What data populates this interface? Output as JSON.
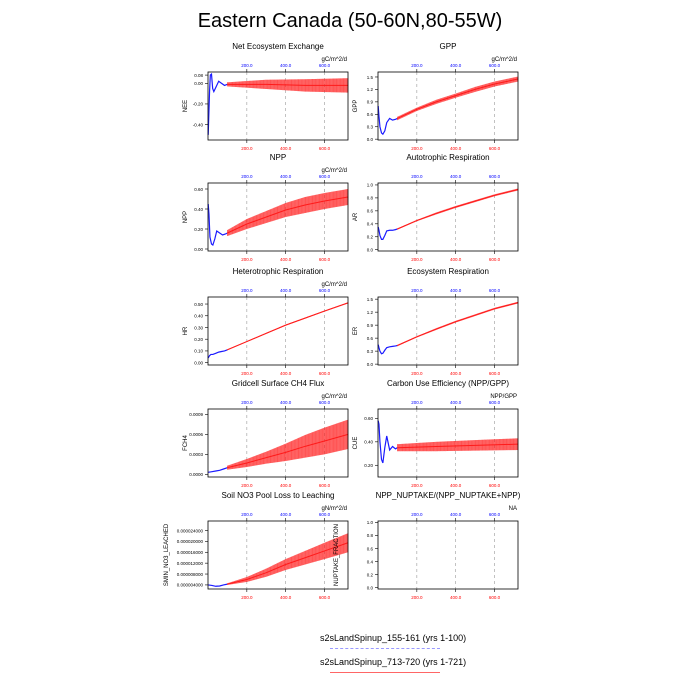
{
  "title": "Eastern Canada (50-60N,80-55W)",
  "colors": {
    "run1": "#1a1aff",
    "run2": "#ff1a1a",
    "bottom_axis": "#ff0000",
    "top_axis": "#0000ff"
  },
  "legend": {
    "entries": [
      {
        "label": "s2sLandSpinup_155-161 (yrs 1-100)",
        "color": "#9999ff",
        "dash": "dashed"
      },
      {
        "label": "s2sLandSpinup_713-720 (yrs 1-721)",
        "color": "#ff6666",
        "dash": "solid"
      }
    ]
  },
  "chart_data": [
    {
      "type": "line",
      "title": "Net Ecosystem Exchange",
      "units": "gC/m^2/d",
      "ylabel": "NEE",
      "xlim": [
        0,
        721
      ],
      "ylim": [
        -0.55,
        0.11
      ],
      "yticks": [
        0.08,
        0.0,
        -0.2,
        -0.4
      ],
      "ytick_labels": [
        "0.08",
        "0.00",
        "-0.20",
        "-0.40"
      ],
      "xticks_bottom": [
        200,
        400,
        600
      ],
      "xticks_top": [
        200,
        400,
        600
      ],
      "grid_x": true,
      "series": [
        {
          "x": [
            1,
            8,
            12,
            18,
            24,
            30,
            40,
            55,
            70,
            85,
            100
          ],
          "y": [
            -0.5,
            -0.08,
            0.08,
            0.09,
            -0.05,
            -0.08,
            -0.04,
            0.02,
            0.0,
            -0.02,
            -0.01
          ]
        },
        {
          "x": [
            100,
            300,
            500,
            721
          ],
          "y": [
            -0.01,
            -0.01,
            -0.02,
            -0.02
          ],
          "band": [
            0.02,
            0.045,
            0.06,
            0.07
          ]
        }
      ]
    },
    {
      "type": "line",
      "title": "GPP",
      "units": "gC/m^2/d",
      "ylabel": "GPP",
      "xlim": [
        0,
        721
      ],
      "ylim": [
        -0.02,
        1.62
      ],
      "yticks": [
        0.0,
        0.3,
        0.6,
        0.9,
        1.2,
        1.5
      ],
      "ytick_labels": [
        "0.0",
        "0.3",
        "0.6",
        "0.9",
        "1.2",
        "1.5"
      ],
      "xticks_bottom": [
        200,
        400,
        600
      ],
      "xticks_top": [
        200,
        400,
        600
      ],
      "grid_x": true,
      "series": [
        {
          "x": [
            1,
            5,
            10,
            18,
            25,
            35,
            45,
            60,
            75,
            90,
            100
          ],
          "y": [
            0.8,
            0.55,
            0.3,
            0.15,
            0.12,
            0.2,
            0.4,
            0.5,
            0.46,
            0.48,
            0.5
          ]
        },
        {
          "x": [
            100,
            200,
            300,
            400,
            500,
            600,
            721
          ],
          "y": [
            0.5,
            0.72,
            0.9,
            1.05,
            1.2,
            1.33,
            1.45
          ],
          "band": [
            0.04,
            0.04,
            0.05,
            0.05,
            0.06,
            0.06,
            0.06
          ]
        }
      ]
    },
    {
      "type": "line",
      "title": "NPP",
      "units": "gC/m^2/d",
      "ylabel": "NPP",
      "xlim": [
        0,
        721
      ],
      "ylim": [
        -0.02,
        0.66
      ],
      "yticks": [
        0.0,
        0.2,
        0.4,
        0.6
      ],
      "ytick_labels": [
        "0.00",
        "0.20",
        "0.40",
        "0.60"
      ],
      "xticks_bottom": [
        200,
        400,
        600
      ],
      "xticks_top": [
        200,
        400,
        600
      ],
      "grid_x": true,
      "series": [
        {
          "x": [
            1,
            5,
            10,
            18,
            25,
            35,
            45,
            60,
            75,
            90,
            100
          ],
          "y": [
            0.45,
            0.35,
            0.12,
            0.05,
            0.04,
            0.1,
            0.18,
            0.16,
            0.14,
            0.15,
            0.16
          ]
        },
        {
          "x": [
            100,
            200,
            300,
            400,
            500,
            600,
            721
          ],
          "y": [
            0.16,
            0.25,
            0.32,
            0.39,
            0.44,
            0.48,
            0.52
          ],
          "band": [
            0.03,
            0.05,
            0.06,
            0.07,
            0.08,
            0.08,
            0.08
          ]
        }
      ]
    },
    {
      "type": "line",
      "title": "Autotrophic Respiration",
      "units": "",
      "ylabel": "AR",
      "xlim": [
        0,
        721
      ],
      "ylim": [
        -0.02,
        1.03
      ],
      "yticks": [
        0.0,
        0.2,
        0.4,
        0.6,
        0.8,
        1.0
      ],
      "ytick_labels": [
        "0.0",
        "0.2",
        "0.4",
        "0.6",
        "0.8",
        "1.0"
      ],
      "xticks_bottom": [
        200,
        400,
        600
      ],
      "xticks_top": [
        200,
        400,
        600
      ],
      "grid_x": true,
      "series": [
        {
          "x": [
            1,
            5,
            10,
            18,
            25,
            35,
            45,
            60,
            75,
            90,
            100
          ],
          "y": [
            0.35,
            0.3,
            0.22,
            0.16,
            0.16,
            0.22,
            0.29,
            0.3,
            0.3,
            0.31,
            0.32
          ]
        },
        {
          "x": [
            100,
            200,
            300,
            400,
            500,
            600,
            721
          ],
          "y": [
            0.32,
            0.45,
            0.56,
            0.66,
            0.75,
            0.84,
            0.93
          ],
          "band": [
            0.01,
            0.01,
            0.015,
            0.015,
            0.015,
            0.015,
            0.015
          ]
        }
      ]
    },
    {
      "type": "line",
      "title": "Heterotrophic Respiration",
      "units": "gC/m^2/d",
      "ylabel": "HR",
      "xlim": [
        0,
        721
      ],
      "ylim": [
        -0.02,
        0.56
      ],
      "yticks": [
        0.0,
        0.1,
        0.2,
        0.3,
        0.4,
        0.5
      ],
      "ytick_labels": [
        "0.00",
        "0.10",
        "0.20",
        "0.30",
        "0.40",
        "0.50"
      ],
      "xticks_bottom": [
        200,
        400,
        600
      ],
      "xticks_top": [
        200,
        400,
        600
      ],
      "grid_x": true,
      "series": [
        {
          "x": [
            1,
            8,
            15,
            25,
            40,
            55,
            70,
            85,
            100
          ],
          "y": [
            0.04,
            0.06,
            0.07,
            0.07,
            0.08,
            0.09,
            0.095,
            0.1,
            0.11
          ]
        },
        {
          "x": [
            100,
            200,
            300,
            400,
            500,
            600,
            721
          ],
          "y": [
            0.11,
            0.18,
            0.25,
            0.32,
            0.38,
            0.44,
            0.51
          ],
          "band": [
            0.004,
            0.004,
            0.005,
            0.005,
            0.005,
            0.005,
            0.005
          ]
        }
      ]
    },
    {
      "type": "line",
      "title": "Ecosystem Respiration",
      "units": "",
      "ylabel": "ER",
      "xlim": [
        0,
        721
      ],
      "ylim": [
        -0.02,
        1.55
      ],
      "yticks": [
        0.0,
        0.3,
        0.6,
        0.9,
        1.2,
        1.5
      ],
      "ytick_labels": [
        "0.0",
        "0.3",
        "0.6",
        "0.9",
        "1.2",
        "1.5"
      ],
      "xticks_bottom": [
        200,
        400,
        600
      ],
      "xticks_top": [
        200,
        400,
        600
      ],
      "grid_x": true,
      "series": [
        {
          "x": [
            1,
            5,
            10,
            18,
            25,
            35,
            45,
            60,
            75,
            90,
            100
          ],
          "y": [
            0.45,
            0.38,
            0.3,
            0.24,
            0.25,
            0.32,
            0.38,
            0.4,
            0.41,
            0.42,
            0.43
          ]
        },
        {
          "x": [
            100,
            200,
            300,
            400,
            500,
            600,
            721
          ],
          "y": [
            0.43,
            0.63,
            0.81,
            0.98,
            1.13,
            1.28,
            1.42
          ],
          "band": [
            0.015,
            0.015,
            0.02,
            0.02,
            0.02,
            0.02,
            0.02
          ]
        }
      ]
    },
    {
      "type": "line",
      "title": "Gridcell Surface CH4 Flux",
      "units": "gC/m^2/d",
      "ylabel": "FCH4",
      "xlim": [
        0,
        721
      ],
      "ylim": [
        -4e-05,
        0.00098
      ],
      "yticks": [
        0.0,
        0.0003,
        0.0006,
        0.0009
      ],
      "ytick_labels": [
        "0.0000",
        "0.0003",
        "0.0006",
        "0.0009"
      ],
      "xticks_bottom": [
        200,
        400,
        600
      ],
      "xticks_top": [
        200,
        400,
        600
      ],
      "grid_x": true,
      "series": [
        {
          "x": [
            1,
            20,
            40,
            60,
            80,
            100
          ],
          "y": [
            3e-05,
            4e-05,
            5e-05,
            6e-05,
            8e-05,
            0.0001
          ]
        },
        {
          "x": [
            100,
            200,
            300,
            400,
            500,
            600,
            721
          ],
          "y": [
            0.0001,
            0.00017,
            0.00025,
            0.00033,
            0.00042,
            0.0005,
            0.0006
          ],
          "band": [
            3e-05,
            6e-05,
            9e-05,
            0.00013,
            0.00017,
            0.0002,
            0.00022
          ]
        }
      ]
    },
    {
      "type": "line",
      "title": "Carbon Use Efficiency (NPP/GPP)",
      "units": "NPP/GPP",
      "ylabel": "CUE",
      "xlim": [
        0,
        721
      ],
      "ylim": [
        0.1,
        0.68
      ],
      "yticks": [
        0.2,
        0.4,
        0.6
      ],
      "ytick_labels": [
        "0.20",
        "0.40",
        "0.60"
      ],
      "xticks_bottom": [
        200,
        400,
        600
      ],
      "xticks_top": [
        200,
        400,
        600
      ],
      "grid_x": true,
      "series": [
        {
          "x": [
            1,
            5,
            10,
            18,
            25,
            35,
            45,
            60,
            75,
            90,
            100
          ],
          "y": [
            0.58,
            0.55,
            0.4,
            0.25,
            0.22,
            0.35,
            0.45,
            0.33,
            0.36,
            0.34,
            0.35
          ]
        },
        {
          "x": [
            100,
            300,
            500,
            721
          ],
          "y": [
            0.35,
            0.36,
            0.37,
            0.38
          ],
          "band": [
            0.03,
            0.04,
            0.045,
            0.05
          ]
        }
      ]
    },
    {
      "type": "line",
      "title": "Soil NO3 Pool Loss to Leaching",
      "units": "gN/m^2/d",
      "ylabel": "SMIN_NO3_LEACHED",
      "xlim": [
        0,
        721
      ],
      "ylim": [
        2.5e-06,
        2.75e-05
      ],
      "yticks": [
        4e-06,
        8e-06,
        1.2e-05,
        1.6e-05,
        2e-05,
        2.4e-05
      ],
      "ytick_labels": [
        "0.000004000",
        "0.000008000",
        "0.000012000",
        "0.000016000",
        "0.000020000",
        "0.000024000"
      ],
      "xticks_bottom": [
        200,
        400,
        600
      ],
      "xticks_top": [
        200,
        400,
        600
      ],
      "grid_x": true,
      "series": [
        {
          "x": [
            1,
            20,
            40,
            60,
            80,
            100
          ],
          "y": [
            4e-06,
            3.8e-06,
            3.5e-06,
            3.6e-06,
            4e-06,
            4.3e-06
          ]
        },
        {
          "x": [
            100,
            200,
            300,
            400,
            500,
            600,
            721
          ],
          "y": [
            4.3e-06,
            6e-06,
            8.5e-06,
            1.15e-05,
            1.4e-05,
            1.65e-05,
            1.95e-05
          ],
          "band": [
            3e-07,
            9e-07,
            1.5e-06,
            2e-06,
            2.5e-06,
            3e-06,
            3.5e-06
          ]
        }
      ]
    },
    {
      "type": "line",
      "title": "NPP_NUPTAKE/(NPP_NUPTAKE+NPP)",
      "units": "NA",
      "ylabel": "NUPTAKE_FRACTION",
      "xlim": [
        0,
        721
      ],
      "ylim": [
        -0.02,
        1.02
      ],
      "yticks": [
        0.0,
        0.2,
        0.4,
        0.6,
        0.8,
        1.0
      ],
      "ytick_labels": [
        "0.0",
        "0.2",
        "0.4",
        "0.6",
        "0.8",
        "1.0"
      ],
      "xticks_bottom": [
        200,
        400,
        600
      ],
      "xticks_top": [
        200,
        400,
        600
      ],
      "grid_x": true,
      "series": []
    }
  ]
}
